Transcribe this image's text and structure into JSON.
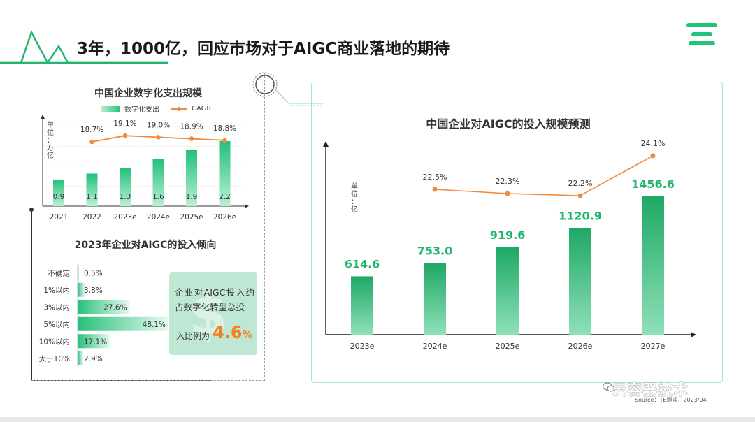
{
  "page": {
    "title": "3年，1000亿，回应市场对于AIGC商业落地的期待",
    "source": "Source：TE测观，2023/04",
    "watermark": "云容器技术",
    "accent_green": "#1fc47a",
    "accent_orange": "#f08a3c",
    "icons": [
      "pulse-line-icon",
      "brand-logo-icon",
      "circle-deco-icon",
      "wechat-icon",
      "dollar-icon"
    ]
  },
  "callout": {
    "line1": "企业对AIGC投入约",
    "line2": "占数字化转型总投",
    "line3": "入比例为",
    "value": "4.6",
    "unit": "%"
  },
  "chart_data": [
    {
      "type": "bar",
      "title": "中国企业数字化支出规模",
      "ylabel": "单位：万亿",
      "categories": [
        "2021",
        "2022",
        "2023e",
        "2024e",
        "2025e",
        "2026e"
      ],
      "series": [
        {
          "name": "数字化支出",
          "type": "bar",
          "values": [
            0.9,
            1.1,
            1.3,
            1.6,
            1.9,
            2.2
          ],
          "labels": [
            "0.9",
            "1.1",
            "1.3",
            "1.6",
            "1.9",
            "2.2"
          ]
        },
        {
          "name": "CAGR",
          "type": "line",
          "x": [
            "2022",
            "2023e",
            "2024e",
            "2025e",
            "2026e"
          ],
          "values": [
            18.7,
            19.1,
            19.0,
            18.9,
            18.8
          ],
          "labels": [
            "18.7%",
            "19.1%",
            "19.0%",
            "18.9%",
            "18.8%"
          ]
        }
      ],
      "grid": true,
      "legend": "top"
    },
    {
      "type": "bar",
      "orientation": "horizontal",
      "title": "2023年企业对AIGC的投入倾向",
      "categories": [
        "不确定",
        "1%以内",
        "3%以内",
        "5%以内",
        "10%以内",
        "大于10%"
      ],
      "values": [
        0.5,
        3.8,
        27.6,
        48.1,
        17.1,
        2.9
      ],
      "labels": [
        "0.5%",
        "3.8%",
        "27.6%",
        "48.1%",
        "17.1%",
        "2.9%"
      ]
    },
    {
      "type": "bar",
      "title": "中国企业对AIGC的投入规模预测",
      "ylabel": "单位：亿",
      "categories": [
        "2023e",
        "2024e",
        "2025e",
        "2026e",
        "2027e"
      ],
      "series": [
        {
          "type": "bar",
          "values": [
            614.6,
            753.0,
            919.6,
            1120.9,
            1456.6
          ],
          "labels": [
            "614.6",
            "753.0",
            "919.6",
            "1120.9",
            "1456.6"
          ]
        },
        {
          "type": "line",
          "x": [
            "2024e",
            "2025e",
            "2026e",
            "2027e"
          ],
          "values": [
            22.5,
            22.3,
            22.2,
            24.1
          ],
          "labels": [
            "22.5%",
            "22.3%",
            "22.2%",
            "24.1%"
          ]
        }
      ]
    }
  ]
}
